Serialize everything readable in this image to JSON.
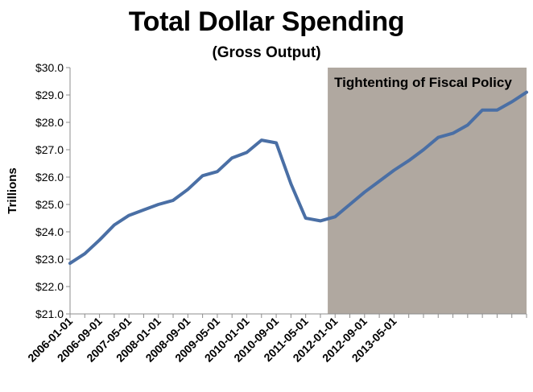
{
  "chart_data": {
    "type": "line",
    "title": "Total Dollar Spending",
    "subtitle": "(Gross Output)",
    "xlabel": "",
    "ylabel": "Trillions",
    "ylim": [
      21.0,
      30.0
    ],
    "yticks": [
      21,
      22,
      23,
      24,
      25,
      26,
      27,
      28,
      29,
      30
    ],
    "ytick_labels": [
      "$21.0",
      "$22.0",
      "$23.0",
      "$24.0",
      "$25.0",
      "$26.0",
      "$27.0",
      "$28.0",
      "$29.0",
      "$30.0"
    ],
    "xtick_labels": [
      "2006-01-01",
      "2006-09-01",
      "2007-05-01",
      "2008-01-01",
      "2008-09-01",
      "2009-05-01",
      "2010-01-01",
      "2010-09-01",
      "2011-05-01",
      "2012-01-01",
      "2012-09-01",
      "2013-05-01"
    ],
    "xtick_positions": [
      0,
      2,
      4,
      6,
      8,
      10,
      12,
      14,
      16,
      18,
      20,
      22
    ],
    "grid": false,
    "series": [
      {
        "name": "Total Dollar Spending",
        "color": "#4a6fa5",
        "values": [
          22.85,
          23.2,
          23.7,
          24.25,
          24.6,
          24.8,
          25.0,
          25.15,
          25.55,
          26.05,
          26.2,
          26.7,
          26.9,
          27.35,
          27.25,
          25.75,
          24.5,
          24.4,
          24.55,
          25.0,
          25.45,
          25.85,
          26.25,
          26.6,
          27.0,
          27.45,
          27.6,
          27.9,
          28.45,
          28.45,
          28.75,
          29.1
        ]
      }
    ],
    "shaded_region": {
      "label": "Tightenting of  Fiscal Policy",
      "start_index": 17.5,
      "end_index": 31,
      "color": "#b0a8a0"
    }
  }
}
